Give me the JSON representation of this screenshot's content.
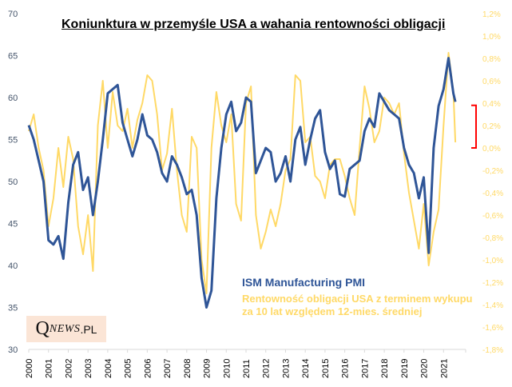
{
  "chart_data": {
    "type": "line",
    "title": "Koniunktura w przemyśle USA a wahania rentowności obligacji",
    "xlabel": "",
    "ylabel_left": "",
    "ylabel_right": "",
    "x_ticks": [
      "2000",
      "2001",
      "2002",
      "2003",
      "2004",
      "2005",
      "2006",
      "2007",
      "2008",
      "2009",
      "2010",
      "2011",
      "2012",
      "2013",
      "2014",
      "2015",
      "2016",
      "2017",
      "2018",
      "2019",
      "2020",
      "2021"
    ],
    "x_range": [
      2000.0,
      2022.0
    ],
    "ylim_left": [
      30,
      70
    ],
    "yticks_left": [
      "30",
      "35",
      "40",
      "45",
      "50",
      "55",
      "60",
      "65",
      "70"
    ],
    "ylim_right": [
      -1.8,
      1.2
    ],
    "yticks_right": [
      "1,2%",
      "1,0%",
      "0,8%",
      "0,6%",
      "0,4%",
      "0,2%",
      "0,0%",
      "-0,2%",
      "-0,4%",
      "-0,6%",
      "-0,8%",
      "-1,0%",
      "-1,2%",
      "-1,4%",
      "-1,6%",
      "-1,8%"
    ],
    "grid": false,
    "legend_position": "bottom-center",
    "series": [
      {
        "name": "ISM Manufacturing  PMI",
        "axis": "left",
        "color": "#2f5597",
        "points": [
          [
            2000.0,
            56.7
          ],
          [
            2000.25,
            55.0
          ],
          [
            2000.5,
            52.5
          ],
          [
            2000.75,
            50.0
          ],
          [
            2001.0,
            43.0
          ],
          [
            2001.25,
            42.5
          ],
          [
            2001.5,
            43.5
          ],
          [
            2001.75,
            40.8
          ],
          [
            2002.0,
            47.5
          ],
          [
            2002.25,
            52.0
          ],
          [
            2002.5,
            53.5
          ],
          [
            2002.75,
            49.0
          ],
          [
            2003.0,
            50.5
          ],
          [
            2003.25,
            46.0
          ],
          [
            2003.5,
            50.0
          ],
          [
            2003.75,
            55.0
          ],
          [
            2004.0,
            60.5
          ],
          [
            2004.25,
            61.0
          ],
          [
            2004.5,
            61.5
          ],
          [
            2004.75,
            57.0
          ],
          [
            2005.0,
            55.0
          ],
          [
            2005.25,
            53.0
          ],
          [
            2005.5,
            55.0
          ],
          [
            2005.75,
            58.0
          ],
          [
            2006.0,
            55.5
          ],
          [
            2006.25,
            55.0
          ],
          [
            2006.5,
            53.5
          ],
          [
            2006.75,
            51.0
          ],
          [
            2007.0,
            50.0
          ],
          [
            2007.25,
            53.0
          ],
          [
            2007.5,
            52.0
          ],
          [
            2007.75,
            50.5
          ],
          [
            2008.0,
            48.5
          ],
          [
            2008.25,
            49.0
          ],
          [
            2008.5,
            46.0
          ],
          [
            2008.75,
            38.5
          ],
          [
            2009.0,
            35.0
          ],
          [
            2009.25,
            37.0
          ],
          [
            2009.5,
            48.0
          ],
          [
            2009.75,
            54.0
          ],
          [
            2010.0,
            58.0
          ],
          [
            2010.25,
            59.5
          ],
          [
            2010.5,
            56.0
          ],
          [
            2010.75,
            57.0
          ],
          [
            2011.0,
            60.0
          ],
          [
            2011.25,
            59.5
          ],
          [
            2011.5,
            51.0
          ],
          [
            2011.75,
            52.5
          ],
          [
            2012.0,
            54.0
          ],
          [
            2012.25,
            53.5
          ],
          [
            2012.5,
            50.0
          ],
          [
            2012.75,
            51.0
          ],
          [
            2013.0,
            53.0
          ],
          [
            2013.25,
            50.0
          ],
          [
            2013.5,
            55.0
          ],
          [
            2013.75,
            56.5
          ],
          [
            2014.0,
            52.0
          ],
          [
            2014.25,
            55.0
          ],
          [
            2014.5,
            57.5
          ],
          [
            2014.75,
            58.5
          ],
          [
            2015.0,
            53.5
          ],
          [
            2015.25,
            51.5
          ],
          [
            2015.5,
            52.5
          ],
          [
            2015.75,
            48.5
          ],
          [
            2016.0,
            48.2
          ],
          [
            2016.25,
            51.5
          ],
          [
            2016.5,
            52.0
          ],
          [
            2016.75,
            52.5
          ],
          [
            2017.0,
            56.0
          ],
          [
            2017.25,
            57.5
          ],
          [
            2017.5,
            56.5
          ],
          [
            2017.75,
            60.5
          ],
          [
            2018.0,
            59.5
          ],
          [
            2018.25,
            58.5
          ],
          [
            2018.5,
            58.0
          ],
          [
            2018.75,
            57.5
          ],
          [
            2019.0,
            54.0
          ],
          [
            2019.25,
            52.0
          ],
          [
            2019.5,
            51.0
          ],
          [
            2019.75,
            48.0
          ],
          [
            2020.0,
            50.5
          ],
          [
            2020.25,
            41.5
          ],
          [
            2020.5,
            54.0
          ],
          [
            2020.75,
            59.0
          ],
          [
            2021.0,
            61.0
          ],
          [
            2021.25,
            64.7
          ],
          [
            2021.5,
            60.5
          ],
          [
            2021.6,
            59.5
          ]
        ]
      },
      {
        "name": "Rentowność obligacji USA z terminem wykupu za 10 lat względem 12-mies. średniej",
        "axis": "right",
        "color": "#ffd966",
        "points": [
          [
            2000.0,
            0.15
          ],
          [
            2000.25,
            0.3
          ],
          [
            2000.5,
            0.0
          ],
          [
            2000.75,
            -0.2
          ],
          [
            2001.0,
            -0.7
          ],
          [
            2001.25,
            -0.45
          ],
          [
            2001.5,
            0.0
          ],
          [
            2001.75,
            -0.35
          ],
          [
            2002.0,
            0.1
          ],
          [
            2002.25,
            -0.1
          ],
          [
            2002.5,
            -0.7
          ],
          [
            2002.75,
            -0.95
          ],
          [
            2003.0,
            -0.6
          ],
          [
            2003.25,
            -1.1
          ],
          [
            2003.5,
            0.2
          ],
          [
            2003.75,
            0.6
          ],
          [
            2004.0,
            0.0
          ],
          [
            2004.25,
            0.5
          ],
          [
            2004.5,
            0.2
          ],
          [
            2004.75,
            0.15
          ],
          [
            2005.0,
            0.35
          ],
          [
            2005.25,
            0.0
          ],
          [
            2005.5,
            0.25
          ],
          [
            2005.75,
            0.4
          ],
          [
            2006.0,
            0.65
          ],
          [
            2006.25,
            0.6
          ],
          [
            2006.5,
            0.3
          ],
          [
            2006.75,
            -0.2
          ],
          [
            2007.0,
            -0.05
          ],
          [
            2007.25,
            0.35
          ],
          [
            2007.5,
            -0.2
          ],
          [
            2007.75,
            -0.6
          ],
          [
            2008.0,
            -0.75
          ],
          [
            2008.25,
            0.1
          ],
          [
            2008.5,
            0.0
          ],
          [
            2008.75,
            -1.0
          ],
          [
            2009.0,
            -1.3
          ],
          [
            2009.25,
            0.0
          ],
          [
            2009.5,
            0.5
          ],
          [
            2009.75,
            0.2
          ],
          [
            2010.0,
            0.05
          ],
          [
            2010.25,
            0.3
          ],
          [
            2010.5,
            -0.5
          ],
          [
            2010.75,
            -0.65
          ],
          [
            2011.0,
            0.4
          ],
          [
            2011.25,
            0.55
          ],
          [
            2011.5,
            -0.6
          ],
          [
            2011.75,
            -0.9
          ],
          [
            2012.0,
            -0.75
          ],
          [
            2012.25,
            -0.55
          ],
          [
            2012.5,
            -0.7
          ],
          [
            2012.75,
            -0.5
          ],
          [
            2013.0,
            -0.2
          ],
          [
            2013.25,
            -0.1
          ],
          [
            2013.5,
            0.65
          ],
          [
            2013.75,
            0.6
          ],
          [
            2014.0,
            0.05
          ],
          [
            2014.25,
            0.1
          ],
          [
            2014.5,
            -0.25
          ],
          [
            2014.75,
            -0.3
          ],
          [
            2015.0,
            -0.45
          ],
          [
            2015.25,
            -0.15
          ],
          [
            2015.5,
            -0.1
          ],
          [
            2015.75,
            -0.1
          ],
          [
            2016.0,
            -0.25
          ],
          [
            2016.25,
            -0.45
          ],
          [
            2016.5,
            -0.6
          ],
          [
            2016.75,
            0.0
          ],
          [
            2017.0,
            0.55
          ],
          [
            2017.25,
            0.35
          ],
          [
            2017.5,
            0.05
          ],
          [
            2017.75,
            0.15
          ],
          [
            2018.0,
            0.45
          ],
          [
            2018.25,
            0.4
          ],
          [
            2018.5,
            0.3
          ],
          [
            2018.75,
            0.4
          ],
          [
            2019.0,
            -0.05
          ],
          [
            2019.25,
            -0.4
          ],
          [
            2019.5,
            -0.65
          ],
          [
            2019.75,
            -0.9
          ],
          [
            2020.0,
            -0.5
          ],
          [
            2020.25,
            -1.05
          ],
          [
            2020.5,
            -0.75
          ],
          [
            2020.75,
            -0.55
          ],
          [
            2021.0,
            0.2
          ],
          [
            2021.25,
            0.85
          ],
          [
            2021.5,
            0.5
          ],
          [
            2021.6,
            0.05
          ]
        ]
      }
    ],
    "annotations": [
      {
        "type": "bracket",
        "color": "#ff0000",
        "axis": "right",
        "from": 0.0,
        "to": 0.38,
        "meaning": "recent bond-yield gap vs PMI"
      }
    ]
  },
  "legend": {
    "pmi_label": "ISM Manufacturing  PMI",
    "bond_label": "Rentowność obligacji USA z terminem wykupu za 10 lat względem 12-mies. średniej"
  },
  "logo": {
    "q": "Q",
    "news": "NEWS",
    "pl": ".PL"
  },
  "colors": {
    "pmi": "#2f5597",
    "bond": "#ffd966",
    "bracket": "#ff0000",
    "left_axis_text": "#44546a",
    "right_axis_text": "#ffd966",
    "logo_bg": "#fbe5d6"
  }
}
